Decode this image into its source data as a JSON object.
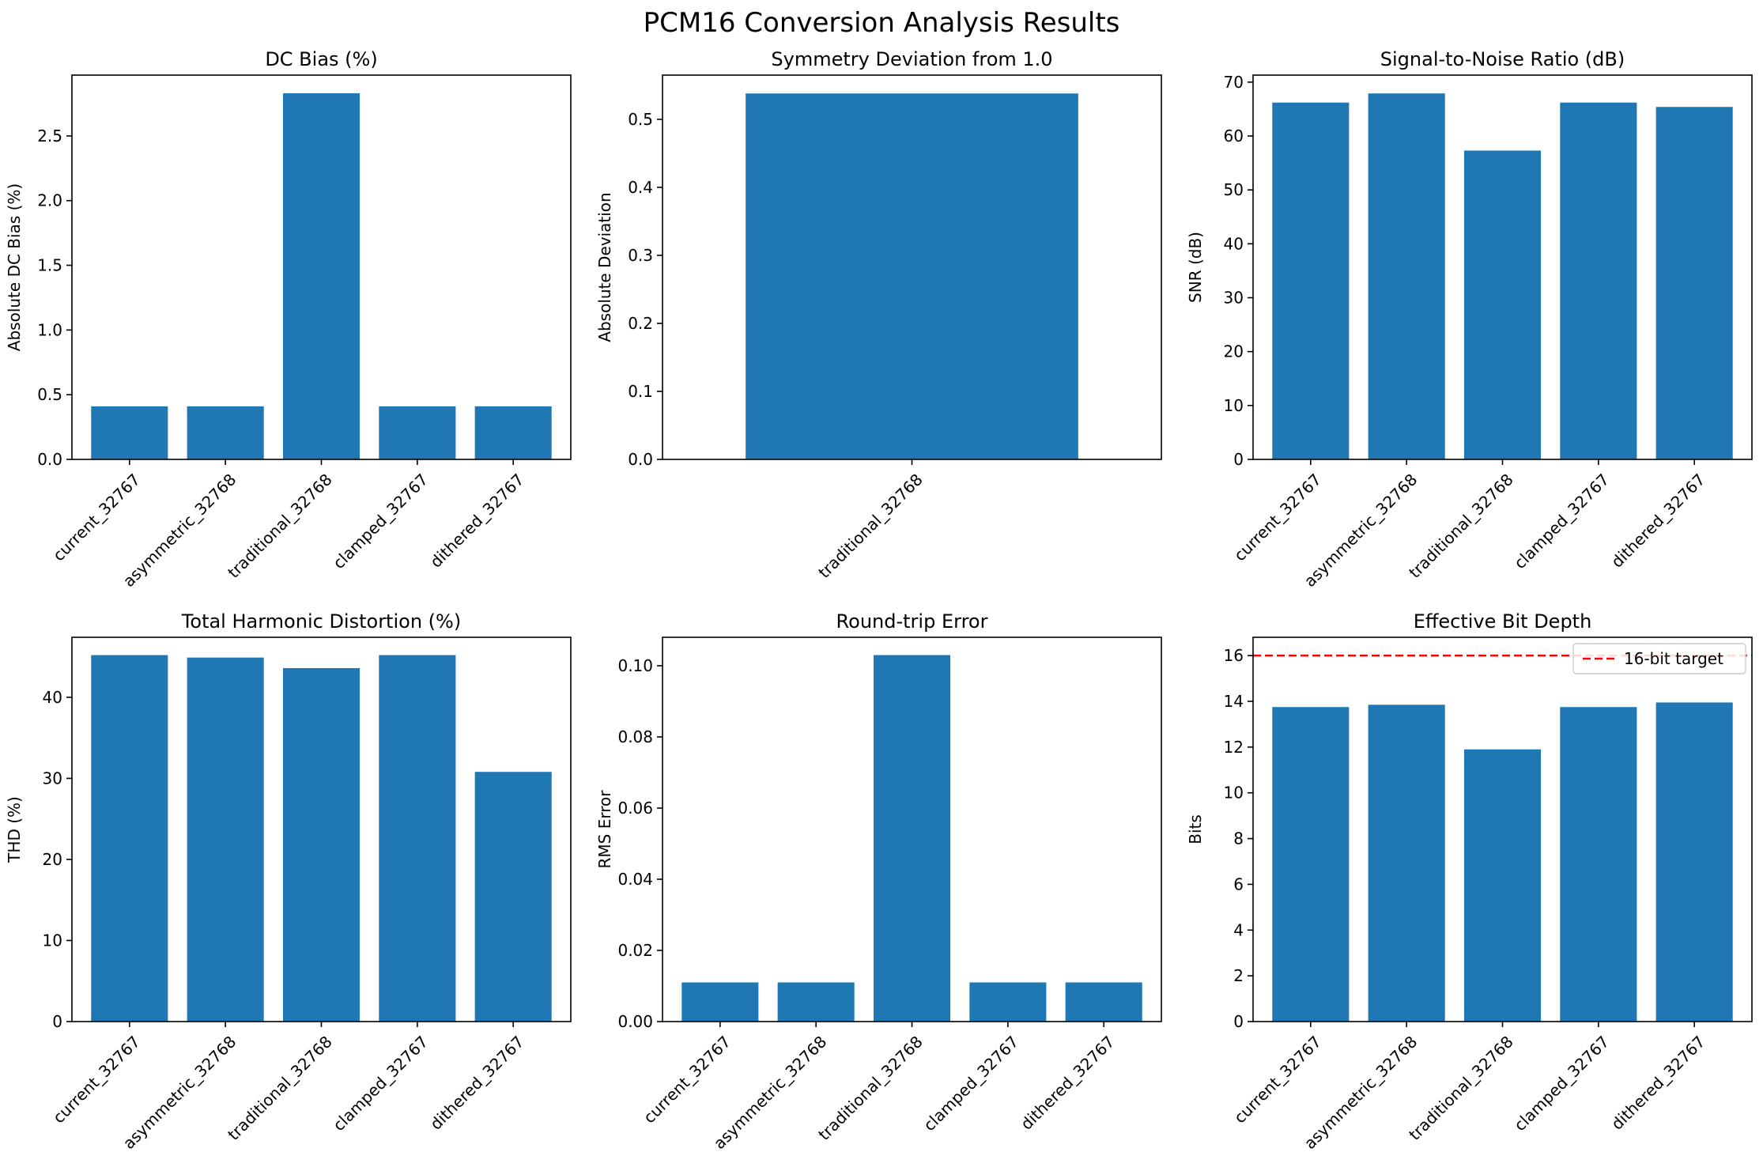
{
  "figure": {
    "title": "PCM16 Conversion Analysis Results"
  },
  "colors": {
    "bar": "#1f77b4",
    "target_line": "#ff0000",
    "axis": "#000000",
    "background": "#ffffff"
  },
  "chart_data": [
    {
      "type": "bar",
      "title": "DC Bias (%)",
      "xlabel": "",
      "ylabel": "Absolute DC Bias (%)",
      "categories": [
        "current_32767",
        "asymmetric_32768",
        "traditional_32768",
        "clamped_32767",
        "dithered_32767"
      ],
      "values": [
        0.41,
        0.41,
        2.83,
        0.41,
        0.41
      ],
      "ylim": [
        0,
        2.97
      ],
      "yticks": [
        0.0,
        0.5,
        1.0,
        1.5,
        2.0,
        2.5
      ],
      "ytick_labels": [
        "0.0",
        "0.5",
        "1.0",
        "1.5",
        "2.0",
        "2.5"
      ],
      "grid": false
    },
    {
      "type": "bar",
      "title": "Symmetry Deviation from 1.0",
      "xlabel": "",
      "ylabel": "Absolute Deviation",
      "categories": [
        "traditional_32768"
      ],
      "values": [
        0.538
      ],
      "ylim": [
        0,
        0.565
      ],
      "yticks": [
        0.0,
        0.1,
        0.2,
        0.3,
        0.4,
        0.5
      ],
      "ytick_labels": [
        "0.0",
        "0.1",
        "0.2",
        "0.3",
        "0.4",
        "0.5"
      ],
      "grid": false
    },
    {
      "type": "bar",
      "title": "Signal-to-Noise Ratio (dB)",
      "xlabel": "",
      "ylabel": "SNR (dB)",
      "categories": [
        "current_32767",
        "asymmetric_32768",
        "traditional_32768",
        "clamped_32767",
        "dithered_32767"
      ],
      "values": [
        66.2,
        67.9,
        57.3,
        66.2,
        65.4
      ],
      "ylim": [
        0,
        71.3
      ],
      "yticks": [
        0,
        10,
        20,
        30,
        40,
        50,
        60,
        70
      ],
      "ytick_labels": [
        "0",
        "10",
        "20",
        "30",
        "40",
        "50",
        "60",
        "70"
      ],
      "grid": false
    },
    {
      "type": "bar",
      "title": "Total Harmonic Distortion (%)",
      "xlabel": "",
      "ylabel": "THD (%)",
      "categories": [
        "current_32767",
        "asymmetric_32768",
        "traditional_32768",
        "clamped_32767",
        "dithered_32767"
      ],
      "values": [
        45.2,
        44.9,
        43.6,
        45.2,
        30.8
      ],
      "ylim": [
        0,
        47.4
      ],
      "yticks": [
        0,
        10,
        20,
        30,
        40
      ],
      "ytick_labels": [
        "0",
        "10",
        "20",
        "30",
        "40"
      ],
      "grid": false
    },
    {
      "type": "bar",
      "title": "Round-trip Error",
      "xlabel": "",
      "ylabel": "RMS Error",
      "categories": [
        "current_32767",
        "asymmetric_32768",
        "traditional_32768",
        "clamped_32767",
        "dithered_32767"
      ],
      "values": [
        0.011,
        0.011,
        0.103,
        0.011,
        0.011
      ],
      "ylim": [
        0,
        0.108
      ],
      "yticks": [
        0.0,
        0.02,
        0.04,
        0.06,
        0.08,
        0.1
      ],
      "ytick_labels": [
        "0.00",
        "0.02",
        "0.04",
        "0.06",
        "0.08",
        "0.10"
      ],
      "grid": false
    },
    {
      "type": "bar",
      "title": "Effective Bit Depth",
      "xlabel": "",
      "ylabel": "Bits",
      "categories": [
        "current_32767",
        "asymmetric_32768",
        "traditional_32768",
        "clamped_32767",
        "dithered_32767"
      ],
      "values": [
        13.75,
        13.85,
        11.9,
        13.75,
        13.95
      ],
      "ylim": [
        0,
        16.8
      ],
      "yticks": [
        0,
        2,
        4,
        6,
        8,
        10,
        12,
        14,
        16
      ],
      "ytick_labels": [
        "0",
        "2",
        "4",
        "6",
        "8",
        "10",
        "12",
        "14",
        "16"
      ],
      "grid": false,
      "reference_line": {
        "y": 16,
        "style": "dashed",
        "color": "#ff0000",
        "label": "16-bit target"
      },
      "legend": {
        "placement": "top-right",
        "entries": [
          "16-bit target"
        ]
      }
    }
  ]
}
